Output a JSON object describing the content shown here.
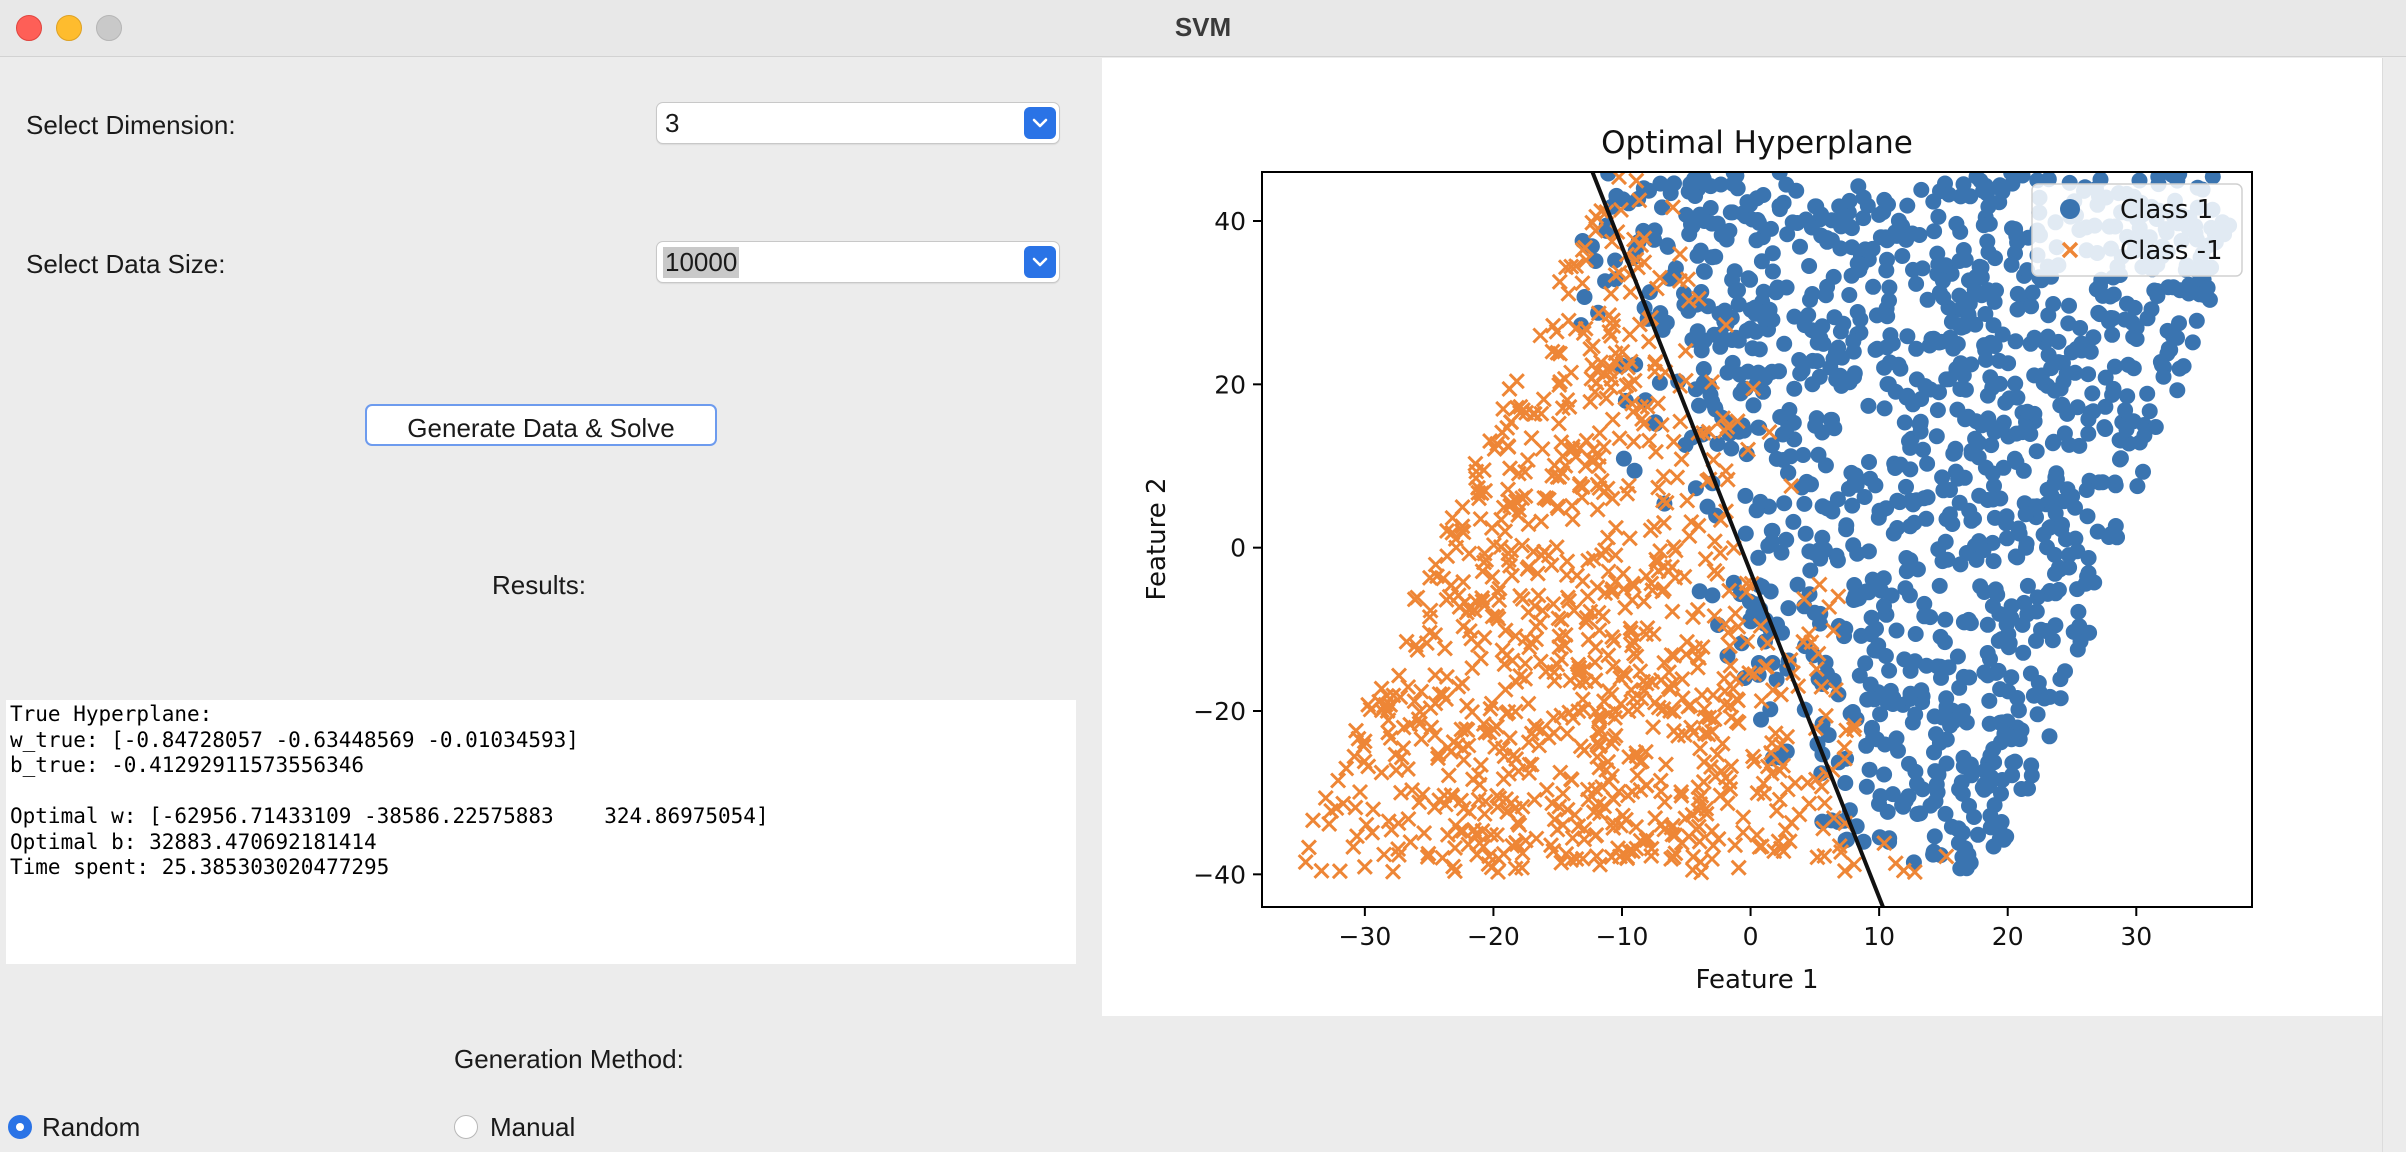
{
  "window": {
    "title": "SVM"
  },
  "form": {
    "dimension_label": "Select Dimension:",
    "dimension_value": "3",
    "data_size_label": "Select Data Size:",
    "data_size_value": "10000",
    "generate_button": "Generate Data & Solve",
    "results_label": "Results:",
    "results_lines": [
      "True Hyperplane:",
      "w_true: [-0.84728057 -0.63448569 -0.01034593]",
      "b_true: -0.41292911573556346",
      "",
      "Optimal w: [-62956.71433109 -38586.22575883    324.86975054]",
      "Optimal b: 32883.470692181414",
      "Time spent: 25.385303020477295"
    ],
    "generation_method_label": "Generation Method:",
    "method_options": [
      "Random",
      "Manual"
    ],
    "method_selected": "Random"
  },
  "colors": {
    "class_pos": "#3a74b0",
    "class_neg": "#ee8636",
    "hyperplane": "#111111",
    "accent": "#2a73e6"
  },
  "chart_data": {
    "type": "scatter",
    "title": "Optimal Hyperplane",
    "xlabel": "Feature 1",
    "ylabel": "Feature 2",
    "xlim": [
      -38,
      39
    ],
    "ylim": [
      -44,
      46
    ],
    "xticks": [
      -30,
      -20,
      -10,
      0,
      10,
      20,
      30
    ],
    "yticks": [
      -40,
      -20,
      0,
      20,
      40
    ],
    "legend_position": "top-right",
    "series": [
      {
        "name": "Class 1",
        "marker": "circle",
        "color": "#3a74b0"
      },
      {
        "name": "Class -1",
        "marker": "x",
        "color": "#ee8636"
      }
    ],
    "hyperplane_line": {
      "x": [
        -12.3,
        10.3
      ],
      "y": [
        46,
        -44
      ]
    },
    "point_count": 10000
  }
}
